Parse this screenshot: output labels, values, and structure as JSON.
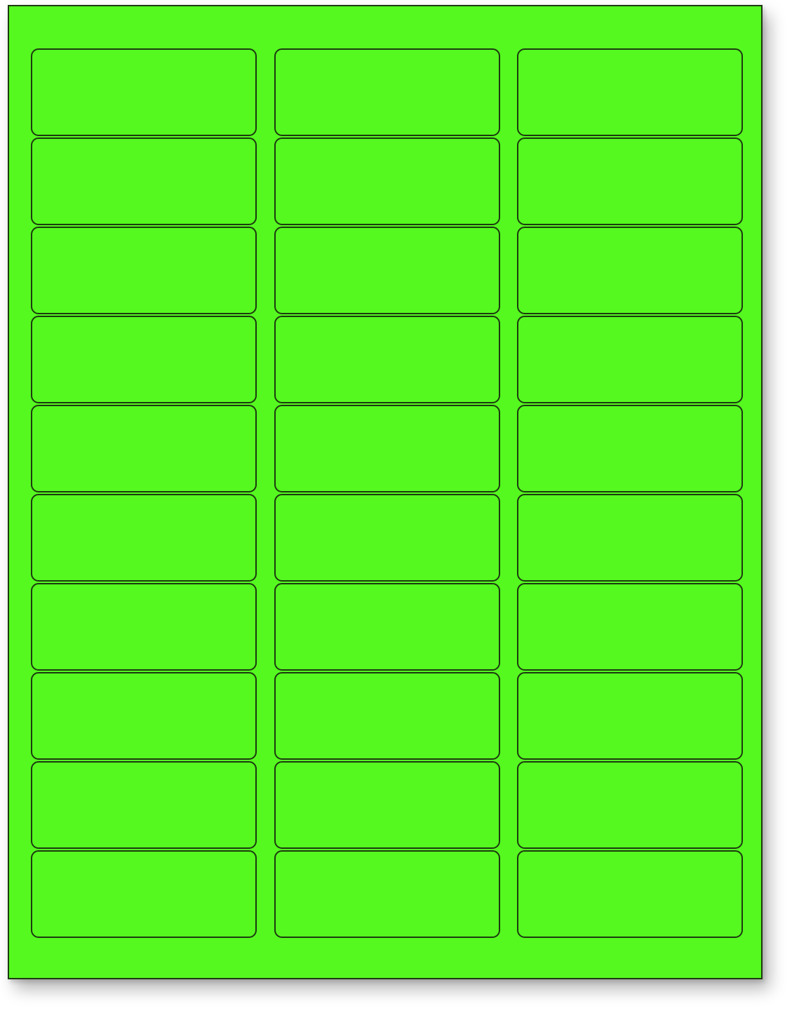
{
  "sheet": {
    "color": "#55f91f",
    "border_color": "#1c3a10",
    "rows": 10,
    "columns": 3
  }
}
